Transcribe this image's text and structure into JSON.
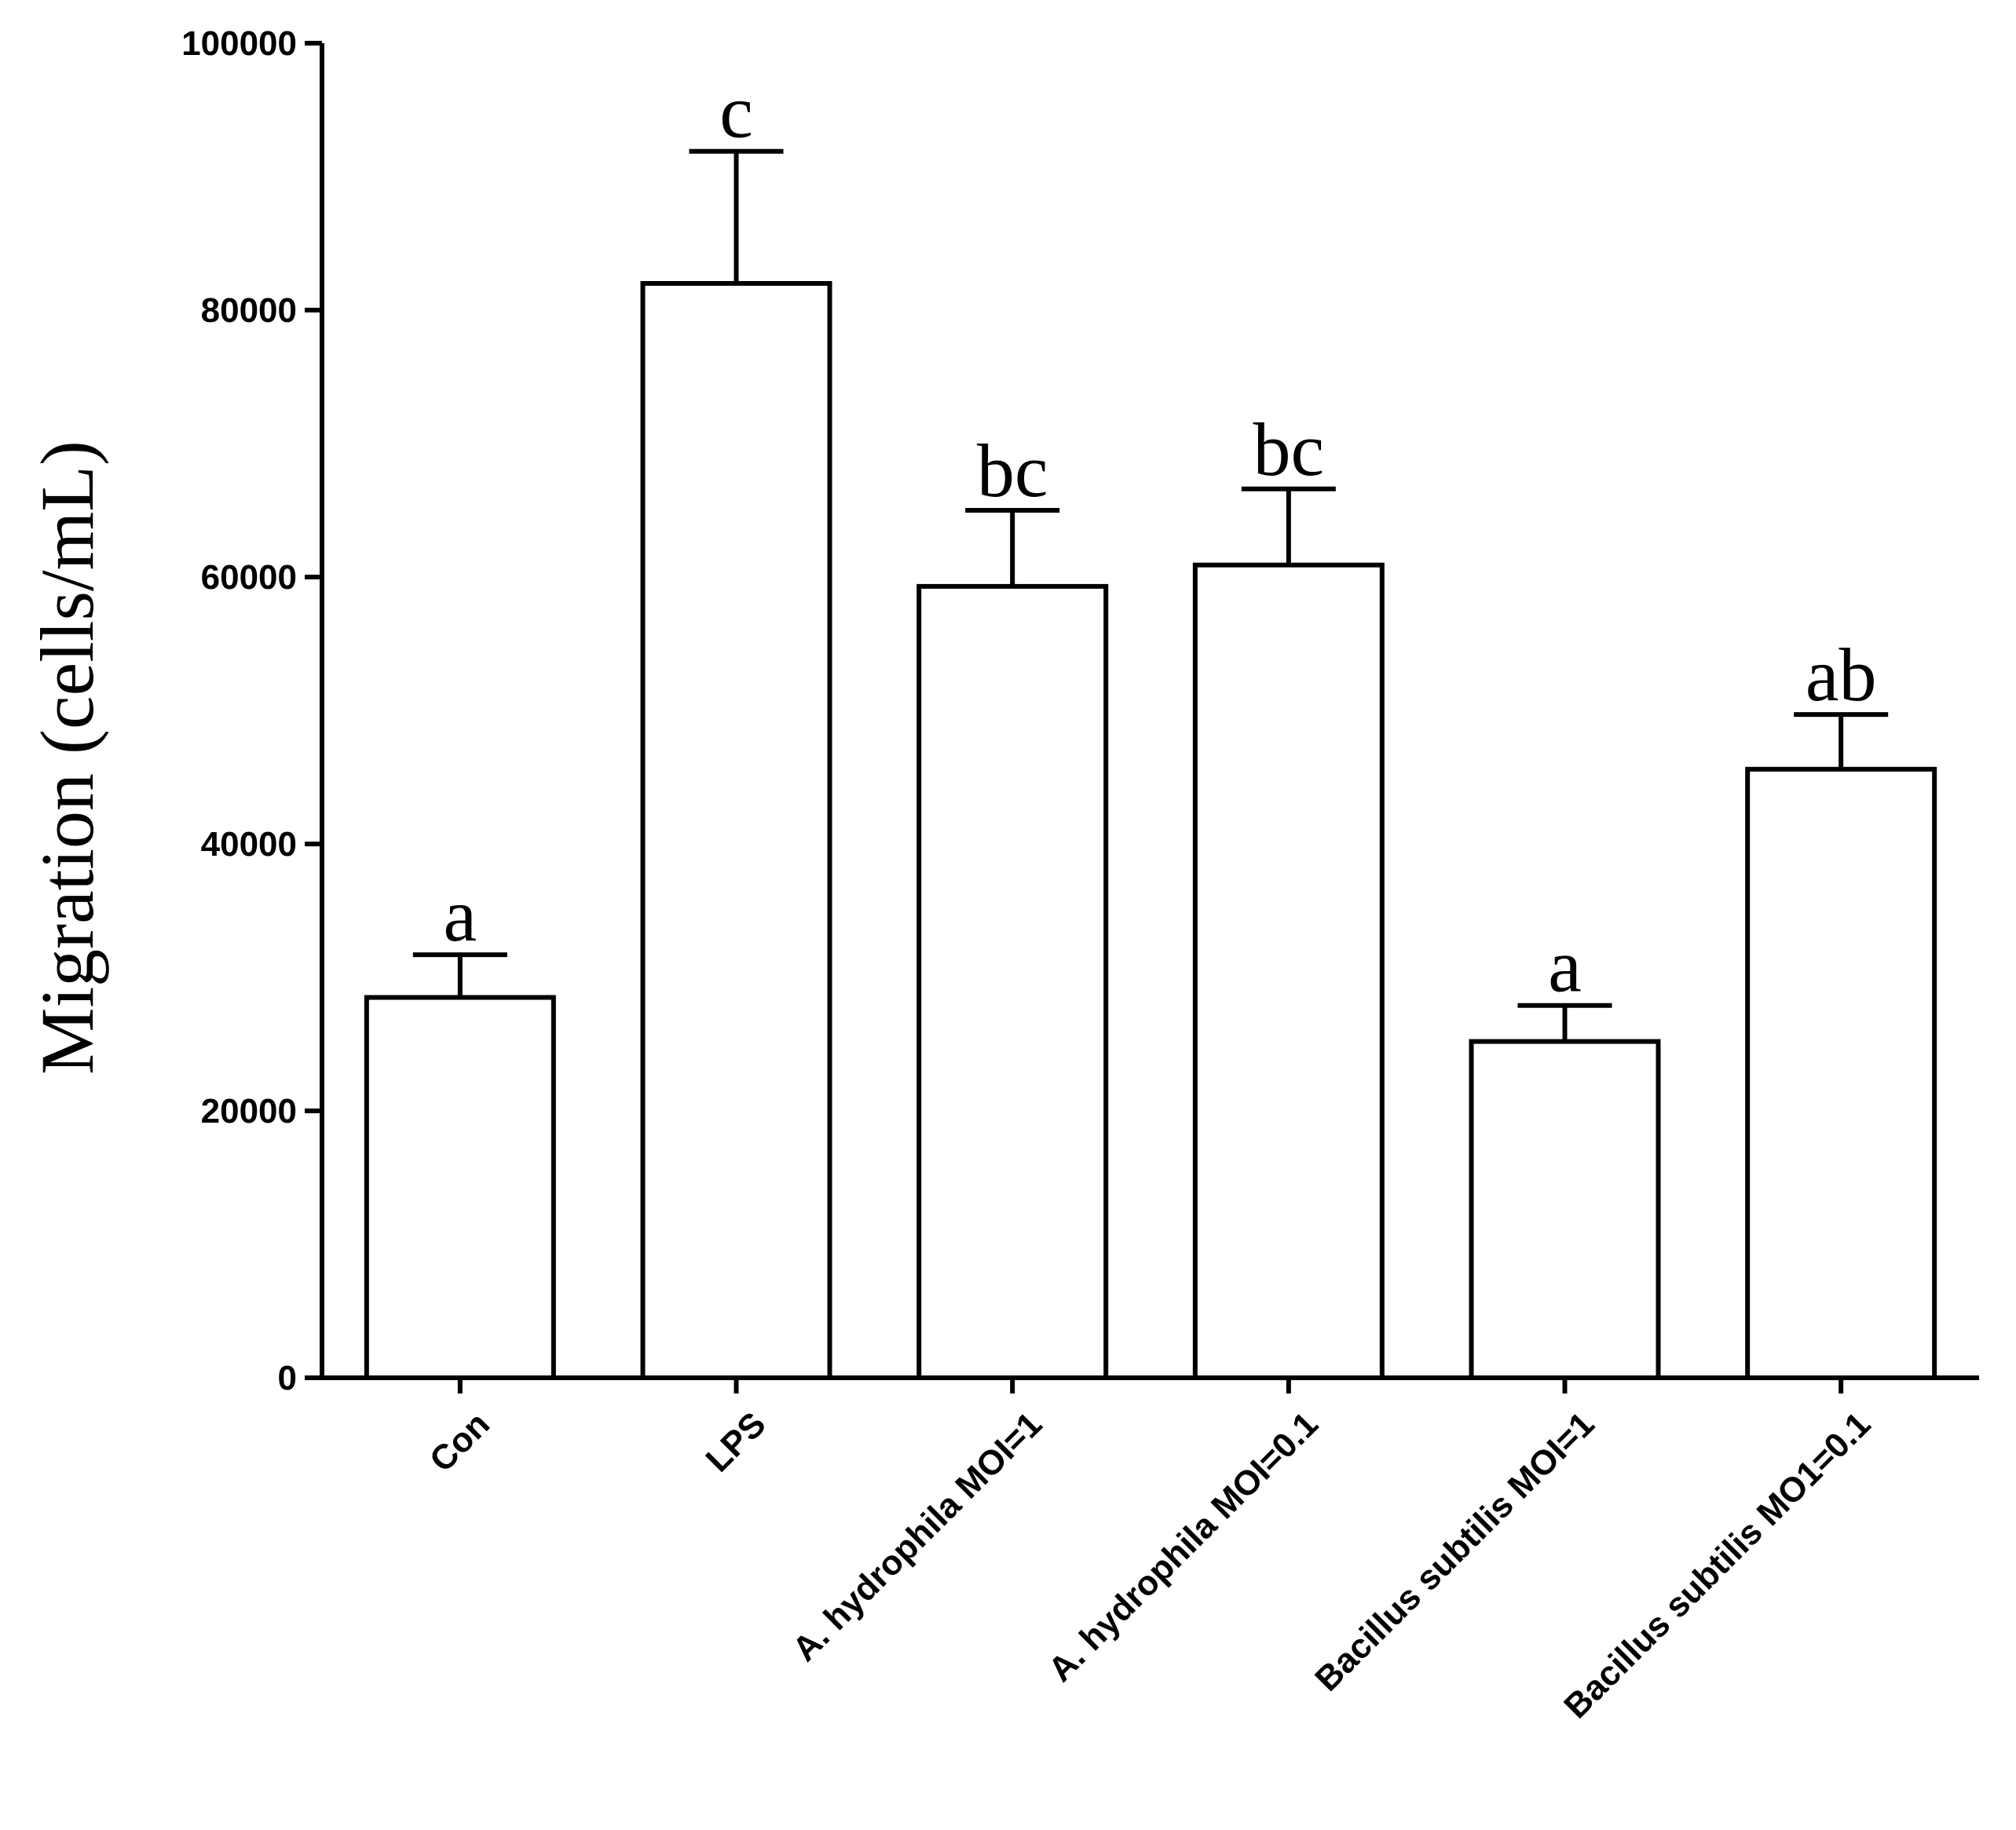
{
  "chart_data": {
    "type": "bar",
    "title": "",
    "xlabel": "",
    "ylabel": "Migration (cells/mL)",
    "ylim": [
      0,
      100000
    ],
    "yticks": [
      "0",
      "20000",
      "40000",
      "60000",
      "80000",
      "100000"
    ],
    "ytick_values": [
      0,
      20000,
      40000,
      60000,
      80000,
      100000
    ],
    "categories": [
      "Con",
      "LPS",
      "A. hydrophila MOI=1",
      "A. hydrophila MOI=0.1",
      "Bacillus subtilis MOI=1",
      "Bacillus subtilis MO1=0.1"
    ],
    "values": [
      28500,
      82000,
      59300,
      60900,
      25200,
      45600
    ],
    "errors": [
      3200,
      9900,
      5700,
      5700,
      2700,
      4100
    ],
    "significance_labels": [
      "a",
      "c",
      "bc",
      "bc",
      "a",
      "ab"
    ],
    "grid": false,
    "legend": false,
    "colors": {
      "bar_fill": "#ffffff",
      "bar_stroke": "#000000",
      "axis": "#000000"
    }
  }
}
